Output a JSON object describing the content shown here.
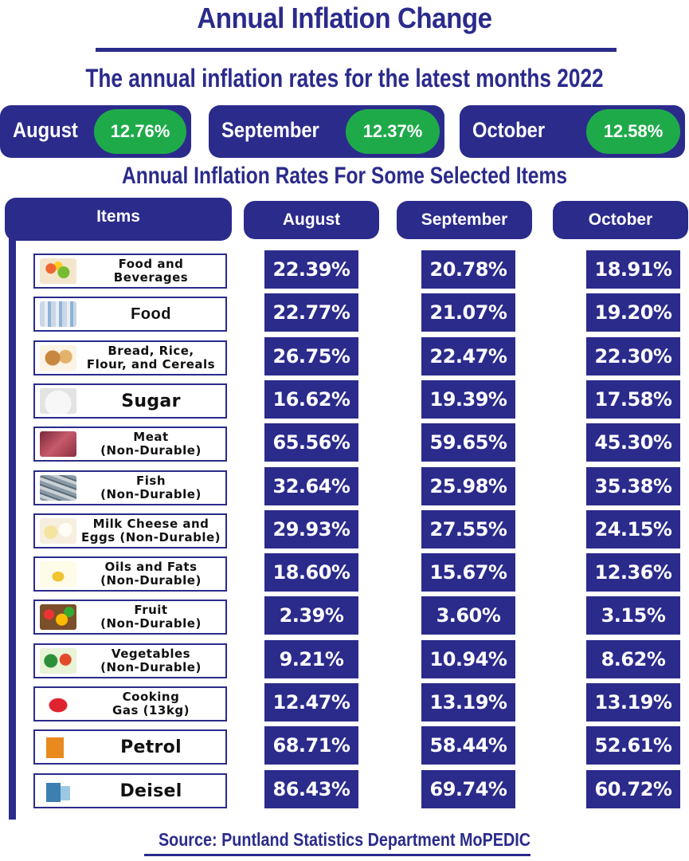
{
  "title": "Annual Inflation Change",
  "subtitle": "The annual inflation rates for the latest months 2022",
  "headline_months": [
    {
      "name": "August",
      "rate": "12.76%"
    },
    {
      "name": "September",
      "rate": "12.37%"
    },
    {
      "name": "October",
      "rate": "12.58%"
    }
  ],
  "section_title": "Annual Inflation Rates For Some Selected Items",
  "table": {
    "header_items": "Items",
    "header_months": [
      "August",
      "September",
      "October"
    ]
  },
  "colors": {
    "primary": "#2b2b8c",
    "accent": "#1faa4a",
    "text": "#111111",
    "background": "#ffffff"
  },
  "chart_data": {
    "type": "table",
    "title": "Annual Inflation Rates For Some Selected Items",
    "columns": [
      "Items",
      "August",
      "September",
      "October"
    ],
    "rows": [
      {
        "item": "Food and\nBeverages",
        "icon": "food-basket-icon",
        "values": [
          "22.39%",
          "20.78%",
          "18.91%"
        ]
      },
      {
        "item": "Food",
        "icon": "grocery-aisle-icon",
        "values": [
          "22.77%",
          "21.07%",
          "19.20%"
        ]
      },
      {
        "item": "Bread, Rice,\nFlour, and Cereals",
        "icon": "bread-icon",
        "values": [
          "26.75%",
          "22.47%",
          "22.30%"
        ]
      },
      {
        "item": "Sugar",
        "icon": "sugar-icon",
        "values": [
          "16.62%",
          "19.39%",
          "17.58%"
        ]
      },
      {
        "item": "Meat\n(Non-Durable)",
        "icon": "meat-icon",
        "values": [
          "65.56%",
          "59.65%",
          "45.30%"
        ]
      },
      {
        "item": "Fish\n(Non-Durable)",
        "icon": "fish-icon",
        "values": [
          "32.64%",
          "25.98%",
          "35.38%"
        ]
      },
      {
        "item": "Milk Cheese and\nEggs (Non-Durable)",
        "icon": "dairy-icon",
        "values": [
          "29.93%",
          "27.55%",
          "24.15%"
        ]
      },
      {
        "item": "Oils and Fats\n(Non-Durable)",
        "icon": "oil-bottle-icon",
        "values": [
          "18.60%",
          "15.67%",
          "12.36%"
        ]
      },
      {
        "item": "Fruit\n(Non-Durable)",
        "icon": "fruit-icon",
        "values": [
          "2.39%",
          "3.60%",
          "3.15%"
        ]
      },
      {
        "item": "Vegetables\n(Non-Durable)",
        "icon": "vegetables-icon",
        "values": [
          "9.21%",
          "10.94%",
          "8.62%"
        ]
      },
      {
        "item": "Cooking\nGas (13kg)",
        "icon": "gas-cylinder-icon",
        "values": [
          "12.47%",
          "13.19%",
          "13.19%"
        ]
      },
      {
        "item": "Petrol",
        "icon": "petrol-pump-icon",
        "values": [
          "68.71%",
          "58.44%",
          "52.61%"
        ]
      },
      {
        "item": "Deisel",
        "icon": "diesel-pump-icon",
        "values": [
          "86.43%",
          "69.74%",
          "60.72%"
        ]
      }
    ]
  },
  "source": "Source: Puntland Statistics Department MoPEDIC"
}
